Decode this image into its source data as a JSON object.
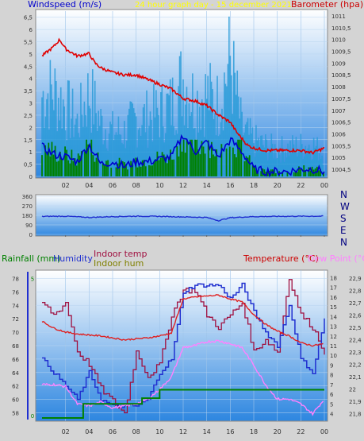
{
  "colors": {
    "wind_gust": "#2a9bd8",
    "wind_avg": "#0000cc",
    "wind_dir_green": "#008000",
    "barometer": "#e00000",
    "temperature": "#e02020",
    "dewpoint": "#ff80ff",
    "humidity": "#2030d0",
    "indoor_temp": "#a01040",
    "indoor_hum": "#808000",
    "rainfall": "#008000",
    "title_yellow": "#ffff00",
    "axis_red": "#cc0000",
    "axis_blue": "#0000cc"
  },
  "chart_data": [
    {
      "type": "line",
      "title": "24 hour graph day - 15 december 2021",
      "ylabel_left": "Windspeed (m/s)",
      "ylabel_right": "Barometer (hpa)",
      "x_ticks": [
        "02",
        "04",
        "06",
        "08",
        "10",
        "12",
        "14",
        "16",
        "18",
        "20",
        "22",
        "00"
      ],
      "y_left_ticks": [
        "0",
        "0,5",
        "1",
        "1,5",
        "2",
        "2,5",
        "3",
        "3,5",
        "4",
        "4,5",
        "5",
        "5,5",
        "6",
        "6,5"
      ],
      "y_left_range": [
        0,
        6.75
      ],
      "y_right_ticks": [
        "1004,5",
        "1005",
        "1005,5",
        "1006",
        "1006,5",
        "1007",
        "1007,5",
        "1008",
        "1008,5",
        "1009",
        "1009,5",
        "1010",
        "1010,5",
        "1011"
      ],
      "y_right_range": [
        1004.2,
        1011.2
      ],
      "series": [
        {
          "name": "barometer",
          "x_hours": [
            0,
            1,
            1.5,
            2,
            3,
            4,
            4.5,
            5,
            6,
            7,
            8,
            9,
            10,
            11,
            12,
            13,
            14,
            15,
            16,
            16.5,
            17,
            17.5,
            18,
            19,
            20,
            21,
            22,
            23,
            24
          ],
          "values": [
            1009.3,
            1009.7,
            1010.0,
            1009.6,
            1009.3,
            1009.4,
            1009.0,
            1008.8,
            1008.6,
            1008.5,
            1008.5,
            1008.3,
            1008.1,
            1007.9,
            1007.5,
            1007.4,
            1007.2,
            1006.8,
            1006.5,
            1006.1,
            1005.8,
            1005.5,
            1005.4,
            1005.3,
            1005.3,
            1005.3,
            1005.3,
            1005.2,
            1005.4
          ]
        },
        {
          "name": "wind_avg",
          "x_hours": [
            0,
            1,
            2,
            3,
            4,
            5,
            6,
            7,
            8,
            9,
            10,
            11,
            12,
            13,
            14,
            15,
            16,
            17,
            18,
            19,
            20,
            21,
            22,
            23,
            24
          ],
          "values": [
            1.2,
            0.9,
            0.8,
            0.6,
            1.3,
            0.5,
            0.6,
            0.4,
            0.6,
            0.6,
            0.7,
            0.8,
            1.7,
            1.0,
            1.4,
            0.8,
            1.5,
            1.0,
            0.3,
            0.2,
            0.2,
            0.2,
            0.3,
            0.3,
            0.2
          ]
        },
        {
          "name": "wind_gust",
          "x_hours": [
            0,
            1,
            2,
            3,
            4,
            5,
            6,
            7,
            8,
            9,
            10,
            11,
            12,
            13,
            14,
            15,
            16,
            17,
            18,
            19,
            20,
            21,
            22,
            23,
            24
          ],
          "values": [
            4.5,
            4.8,
            3.9,
            3.0,
            4.7,
            3.0,
            2.5,
            2.5,
            3.2,
            3.3,
            3.6,
            4.0,
            5.5,
            4.2,
            4.6,
            4.0,
            6.6,
            2.6,
            2.0,
            1.7,
            1.5,
            1.6,
            1.7,
            1.8,
            1.2
          ]
        }
      ]
    },
    {
      "type": "line",
      "ylabel_right": "N W S E N",
      "y_left_ticks": [
        "0",
        "90",
        "180",
        "270",
        "360"
      ],
      "y_left_range": [
        0,
        360
      ],
      "series": [
        {
          "name": "wind_direction",
          "x_hours": [
            0,
            2,
            4,
            6,
            8,
            10,
            12,
            14,
            15,
            16,
            18,
            20,
            22,
            24
          ],
          "values": [
            170,
            172,
            160,
            168,
            172,
            170,
            165,
            160,
            130,
            158,
            168,
            170,
            172,
            172
          ]
        }
      ]
    },
    {
      "type": "line",
      "ylabel_left": "Rainfall (mm)",
      "legend": [
        "Humidity",
        "Indoor temp",
        "Indoor hum",
        "Temperature (°C)",
        "Dew Point (°C)"
      ],
      "y_left_ticks": [
        "58",
        "60",
        "62",
        "64",
        "66",
        "68",
        "70",
        "72",
        "74",
        "76",
        "78"
      ],
      "y_left_range": [
        57,
        79
      ],
      "y_mid_ticks": [
        "0",
        "5"
      ],
      "y_right1_ticks": [
        "4",
        "5",
        "6",
        "7",
        "8",
        "9",
        "10",
        "11",
        "12",
        "13",
        "14",
        "15",
        "16",
        "17",
        "18"
      ],
      "y_right1_range": [
        3.4,
        18.6
      ],
      "y_right2_ticks": [
        "21,8",
        "21,9",
        "22",
        "22,1",
        "22,2",
        "22,3",
        "22,4",
        "22,5",
        "22,6",
        "22,7",
        "22,8",
        "22,9"
      ],
      "y_right2_range": [
        21.75,
        22.95
      ],
      "series": [
        {
          "name": "Temperature (°C)",
          "x_hours": [
            0,
            1,
            2,
            3,
            4,
            5,
            6,
            7,
            8,
            9,
            10,
            11,
            12,
            13,
            14,
            15,
            16,
            17,
            18,
            19,
            20,
            21,
            22,
            23,
            24
          ],
          "values": [
            13.5,
            12.8,
            12.4,
            12.2,
            12.1,
            12.0,
            11.8,
            11.6,
            11.7,
            11.8,
            12.0,
            12.3,
            15.8,
            16.0,
            16.1,
            16.2,
            15.8,
            15.5,
            14.2,
            13.2,
            12.5,
            12.0,
            11.3,
            11.0,
            11.2
          ]
        },
        {
          "name": "Dew Point (°C)",
          "x_hours": [
            0,
            1,
            2,
            3,
            4,
            5,
            6,
            7,
            8,
            9,
            10,
            11,
            12,
            13,
            14,
            15,
            16,
            17,
            18,
            19,
            20,
            21,
            22,
            23,
            24
          ],
          "values": [
            7.0,
            7.0,
            6.8,
            5.0,
            4.8,
            5.2,
            4.6,
            4.8,
            5.0,
            5.5,
            6.5,
            7.8,
            10.8,
            11.0,
            11.4,
            11.5,
            11.2,
            10.8,
            9.0,
            7.0,
            5.5,
            5.5,
            5.0,
            4.0,
            5.5
          ]
        },
        {
          "name": "Humidity",
          "x_hours": [
            0,
            1,
            2,
            3,
            4,
            5,
            6,
            7,
            8,
            9,
            10,
            11,
            12,
            13,
            14,
            15,
            16,
            17,
            18,
            19,
            20,
            21,
            22,
            23,
            24
          ],
          "values": [
            66,
            64,
            62,
            60,
            64,
            60,
            59,
            59,
            59,
            60,
            64,
            66,
            76,
            77,
            77,
            77,
            75,
            77,
            73,
            70,
            68,
            74,
            66,
            64,
            72
          ]
        },
        {
          "name": "Indoor temp",
          "x_hours": [
            0,
            1,
            2,
            3,
            4,
            5,
            6,
            7,
            8,
            9,
            10,
            11,
            12,
            13,
            14,
            15,
            16,
            17,
            18,
            19,
            20,
            21,
            22,
            23,
            24
          ],
          "values": [
            22.7,
            22.6,
            22.7,
            22.3,
            22.2,
            22.0,
            21.9,
            21.8,
            22.3,
            22.1,
            22.2,
            22.6,
            22.8,
            22.8,
            22.6,
            22.5,
            22.6,
            22.7,
            22.3,
            22.4,
            22.3,
            22.9,
            22.6,
            22.5,
            22.3
          ]
        },
        {
          "name": "Rainfall (mm)",
          "x_hours": [
            0,
            3,
            3.5,
            8,
            8.5,
            10,
            24
          ],
          "values": [
            0,
            0,
            0.5,
            0.5,
            0.7,
            1.0,
            1.0
          ]
        }
      ]
    }
  ]
}
